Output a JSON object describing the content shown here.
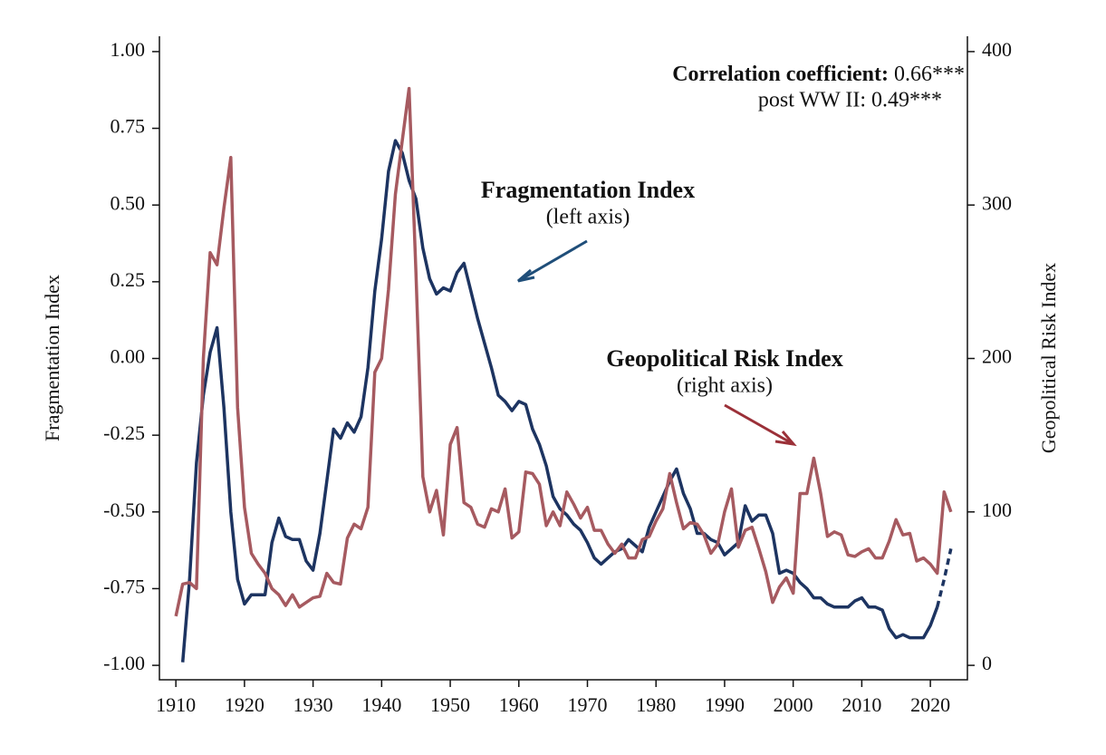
{
  "chart_data": {
    "type": "line",
    "y_label": "Fragmentation Index",
    "y2_label": "Geopolitical Risk Index",
    "correlation_label": "Correlation coefficient:",
    "correlation_value": "0.66***",
    "post_ww2": "post WW II: 0.49***",
    "series0_note": "(left axis)",
    "series1_note": "(right axis)",
    "xlim": [
      1907.6,
      2025.4
    ],
    "xticks": [
      1910,
      1920,
      1930,
      1940,
      1950,
      1960,
      1970,
      1980,
      1990,
      2000,
      2010,
      2020
    ],
    "ylim": [
      -1.047,
      1.05
    ],
    "yticks": [
      {
        "value": 1.0,
        "label": "1.00"
      },
      {
        "value": 0.75,
        "label": "0.75"
      },
      {
        "value": 0.5,
        "label": "0.50"
      },
      {
        "value": 0.25,
        "label": "0.25"
      },
      {
        "value": 0,
        "label": "0.00"
      },
      {
        "value": -0.25,
        "label": "-0.25"
      },
      {
        "value": -0.5,
        "label": "-0.50"
      },
      {
        "value": -0.75,
        "label": "-0.75"
      },
      {
        "value": -1.0,
        "label": "-1.00"
      }
    ],
    "y2lim": [
      -9.4,
      410
    ],
    "y2ticks": [
      0,
      100,
      200,
      300,
      400
    ],
    "x": [
      1910,
      1911,
      1912,
      1913,
      1914,
      1915,
      1916,
      1917,
      1918,
      1919,
      1920,
      1921,
      1922,
      1923,
      1924,
      1925,
      1926,
      1927,
      1928,
      1929,
      1930,
      1931,
      1932,
      1933,
      1934,
      1935,
      1936,
      1937,
      1938,
      1939,
      1940,
      1941,
      1942,
      1943,
      1944,
      1945,
      1946,
      1947,
      1948,
      1949,
      1950,
      1951,
      1952,
      1953,
      1954,
      1955,
      1956,
      1957,
      1958,
      1959,
      1960,
      1961,
      1962,
      1963,
      1964,
      1965,
      1966,
      1967,
      1968,
      1969,
      1970,
      1971,
      1972,
      1973,
      1974,
      1975,
      1976,
      1977,
      1978,
      1979,
      1980,
      1981,
      1982,
      1983,
      1984,
      1985,
      1986,
      1987,
      1988,
      1989,
      1990,
      1991,
      1992,
      1993,
      1994,
      1995,
      1996,
      1997,
      1998,
      1999,
      2000,
      2001,
      2002,
      2003,
      2004,
      2005,
      2006,
      2007,
      2008,
      2009,
      2010,
      2011,
      2012,
      2013,
      2014,
      2015,
      2016,
      2017,
      2018,
      2019,
      2020,
      2021,
      2022,
      2023
    ],
    "series": [
      {
        "name": "Fragmentation Index",
        "color": "#1d3461",
        "label_color": "#1f4e79",
        "style": "solid",
        "values": [
          null,
          -0.99,
          -0.72,
          -0.34,
          -0.12,
          0.02,
          0.1,
          -0.16,
          -0.5,
          -0.72,
          -0.8,
          -0.77,
          -0.77,
          -0.77,
          -0.6,
          -0.52,
          -0.58,
          -0.59,
          -0.59,
          -0.66,
          -0.69,
          -0.57,
          -0.4,
          -0.23,
          -0.26,
          -0.21,
          -0.24,
          -0.19,
          -0.03,
          0.22,
          0.39,
          0.61,
          0.71,
          0.67,
          0.58,
          0.52,
          0.36,
          0.26,
          0.21,
          0.23,
          0.22,
          0.28,
          0.31,
          0.22,
          0.13,
          0.05,
          -0.03,
          -0.12,
          -0.14,
          -0.17,
          -0.14,
          -0.15,
          -0.23,
          -0.28,
          -0.35,
          -0.45,
          -0.49,
          -0.51,
          -0.54,
          -0.56,
          -0.6,
          -0.65,
          -0.67,
          -0.65,
          -0.63,
          -0.62,
          -0.59,
          -0.61,
          -0.63,
          -0.55,
          -0.5,
          -0.45,
          -0.4,
          -0.36,
          -0.44,
          -0.49,
          -0.57,
          -0.57,
          -0.59,
          -0.6,
          -0.64,
          -0.62,
          -0.6,
          -0.48,
          -0.53,
          -0.51,
          -0.51,
          -0.57,
          -0.7,
          -0.69,
          -0.7,
          -0.73,
          -0.75,
          -0.78,
          -0.78,
          -0.8,
          -0.81,
          -0.81,
          -0.81,
          -0.79,
          -0.78,
          -0.81,
          -0.81,
          -0.82,
          -0.88,
          -0.91,
          -0.9,
          -0.91,
          -0.91,
          -0.91,
          -0.87,
          -0.81,
          null,
          null
        ]
      },
      {
        "color": "#1d3461",
        "style": "dashed",
        "values": [
          null,
          null,
          null,
          null,
          null,
          null,
          null,
          null,
          null,
          null,
          null,
          null,
          null,
          null,
          null,
          null,
          null,
          null,
          null,
          null,
          null,
          null,
          null,
          null,
          null,
          null,
          null,
          null,
          null,
          null,
          null,
          null,
          null,
          null,
          null,
          null,
          null,
          null,
          null,
          null,
          null,
          null,
          null,
          null,
          null,
          null,
          null,
          null,
          null,
          null,
          null,
          null,
          null,
          null,
          null,
          null,
          null,
          null,
          null,
          null,
          null,
          null,
          null,
          null,
          null,
          null,
          null,
          null,
          null,
          null,
          null,
          null,
          null,
          null,
          null,
          null,
          null,
          null,
          null,
          null,
          null,
          null,
          null,
          null,
          null,
          null,
          null,
          null,
          null,
          null,
          null,
          null,
          null,
          null,
          null,
          null,
          null,
          null,
          null,
          null,
          null,
          null,
          null,
          null,
          null,
          null,
          null,
          null,
          null,
          null,
          null,
          -0.81,
          -0.72,
          -0.62
        ]
      },
      {
        "name": "Geopolitical Risk Index",
        "color": "#a65a60",
        "label_color": "#9b3038",
        "style": "solid",
        "axis": "y2",
        "values": [
          32,
          53,
          54,
          50,
          200,
          269,
          261,
          298,
          331,
          168,
          103,
          73,
          66,
          60,
          50,
          46,
          39,
          46,
          38,
          41,
          44,
          45,
          60,
          54,
          53,
          83,
          92,
          89,
          103,
          191,
          200,
          245,
          307,
          342,
          376,
          256,
          123,
          100,
          114,
          85,
          144,
          155,
          106,
          103,
          92,
          90,
          102,
          100,
          115,
          83,
          87,
          126,
          125,
          118,
          91,
          100,
          91,
          113,
          105,
          96,
          103,
          88,
          88,
          79,
          73,
          79,
          70,
          70,
          82,
          84,
          94,
          102,
          125,
          106,
          89,
          93,
          92,
          85,
          73,
          79,
          100,
          115,
          77,
          88,
          90,
          76,
          61,
          41,
          51,
          57,
          47,
          112,
          112,
          135,
          112,
          84,
          87,
          85,
          72,
          71,
          74,
          76,
          70,
          70,
          81,
          95,
          85,
          86,
          68,
          70,
          66,
          60,
          113,
          100
        ]
      }
    ]
  }
}
